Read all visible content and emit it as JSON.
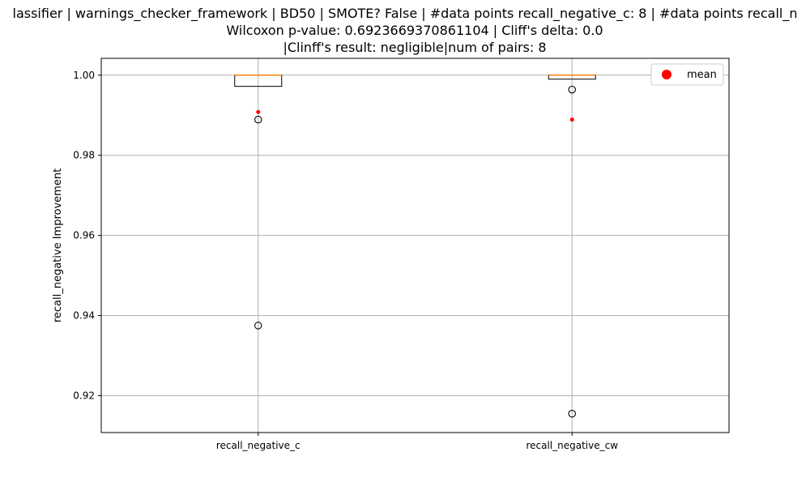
{
  "chart_data": {
    "type": "box",
    "title_lines": [
      "lassifier | warnings_checker_framework | BD50 | SMOTE? False | #data points recall_negative_c: 8 | #data points recall_n",
      "Wilcoxon p-value: 0.6923669370861104 | Cliff's delta: 0.0",
      "|Clinff's result: negligible|num of pairs: 8"
    ],
    "ylabel": "recall_negative Improvement",
    "xlabel": "",
    "ylim": [
      0.9108,
      1.0042
    ],
    "yticks": [
      0.92,
      0.94,
      0.96,
      0.98,
      1.0
    ],
    "ytick_labels": [
      "0.92",
      "0.94",
      "0.96",
      "0.98",
      "1.00"
    ],
    "grid": true,
    "categories": [
      "recall_negative_c",
      "recall_negative_cw"
    ],
    "boxes": [
      {
        "q1": 0.9972,
        "median": 1.0,
        "q3": 1.0,
        "whisker_low": 0.9972,
        "whisker_high": 1.0,
        "mean": 0.9908,
        "outliers": [
          0.9889,
          0.9375
        ]
      },
      {
        "q1": 0.999,
        "median": 1.0,
        "q3": 1.0,
        "whisker_low": 0.999,
        "whisker_high": 1.0,
        "mean": 0.9889,
        "outliers": [
          0.9964,
          0.9155
        ]
      }
    ],
    "legend": {
      "position": "top-right",
      "entries": [
        {
          "label": "mean"
        }
      ]
    },
    "colors": {
      "median": "#ff7f0e",
      "mean": "#ff0000",
      "box": "#000000",
      "grid": "#b0b0b0"
    }
  }
}
